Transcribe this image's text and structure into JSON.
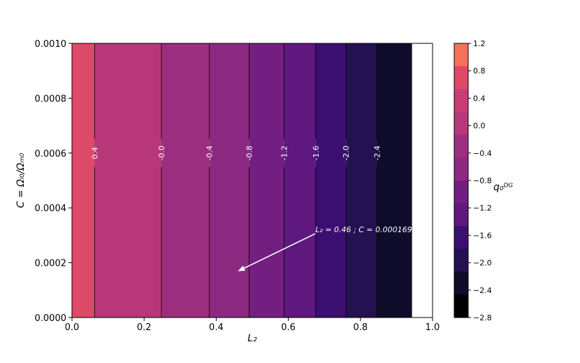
{
  "chart_data": {
    "type": "contour",
    "xlabel": "L₂",
    "ylabel": "C = Ωₗ₀/Ωₘ₀",
    "colorbar_label": "q₀ᴰᴳ",
    "xlim": [
      0.0,
      1.0
    ],
    "ylim": [
      0.0,
      0.001
    ],
    "x_ticks": [
      "0.0",
      "0.2",
      "0.4",
      "0.6",
      "0.8",
      "1.0"
    ],
    "y_ticks": [
      "0.0000",
      "0.0002",
      "0.0004",
      "0.0006",
      "0.0008",
      "0.0010"
    ],
    "colorbar_ticks": [
      "1.2",
      "0.8",
      "0.4",
      "0.0",
      "−0.4",
      "−0.8",
      "−1.2",
      "−1.6",
      "−2.0",
      "−2.4",
      "−2.8"
    ],
    "levels": [
      1.2,
      0.8,
      0.4,
      0.0,
      -0.4,
      -0.8,
      -1.2,
      -1.6,
      -2.0,
      -2.4,
      -2.8
    ],
    "bands": [
      {
        "x0": 0.0,
        "x1": 0.063,
        "color": "#de4968"
      },
      {
        "x0": 0.063,
        "x1": 0.248,
        "color": "#b73779"
      },
      {
        "x0": 0.248,
        "x1": 0.381,
        "color": "#9c2e7f"
      },
      {
        "x0": 0.381,
        "x1": 0.491,
        "color": "#8c2981"
      },
      {
        "x0": 0.491,
        "x1": 0.588,
        "color": "#721f81"
      },
      {
        "x0": 0.588,
        "x1": 0.676,
        "color": "#5f187f"
      },
      {
        "x0": 0.676,
        "x1": 0.76,
        "color": "#3b0f70"
      },
      {
        "x0": 0.76,
        "x1": 0.846,
        "color": "#231151"
      },
      {
        "x0": 0.846,
        "x1": 0.943,
        "color": "#0e0b2b"
      }
    ],
    "contour_lines": [
      {
        "x": 0.063,
        "label": "0.4"
      },
      {
        "x": 0.248,
        "label": "-0.0"
      },
      {
        "x": 0.381,
        "label": "-0.4"
      },
      {
        "x": 0.491,
        "label": "-0.8"
      },
      {
        "x": 0.588,
        "label": "-1.2"
      },
      {
        "x": 0.676,
        "label": "-1.6"
      },
      {
        "x": 0.76,
        "label": "-2.0"
      },
      {
        "x": 0.846,
        "label": "-2.4"
      }
    ],
    "contour_label_y": 0.0006,
    "colorbar_colors": [
      "#f7705c",
      "#de4968",
      "#c83e73",
      "#b73779",
      "#9c2e7f",
      "#8c2981",
      "#721f81",
      "#5f187f",
      "#3b0f70",
      "#231151",
      "#0e0b2b",
      "#000004"
    ],
    "annotation": {
      "text": "L₂ = 0.46 ; C = 0.000169",
      "point": [
        0.46,
        0.000169
      ],
      "text_pos": [
        0.675,
        0.000306
      ]
    }
  }
}
